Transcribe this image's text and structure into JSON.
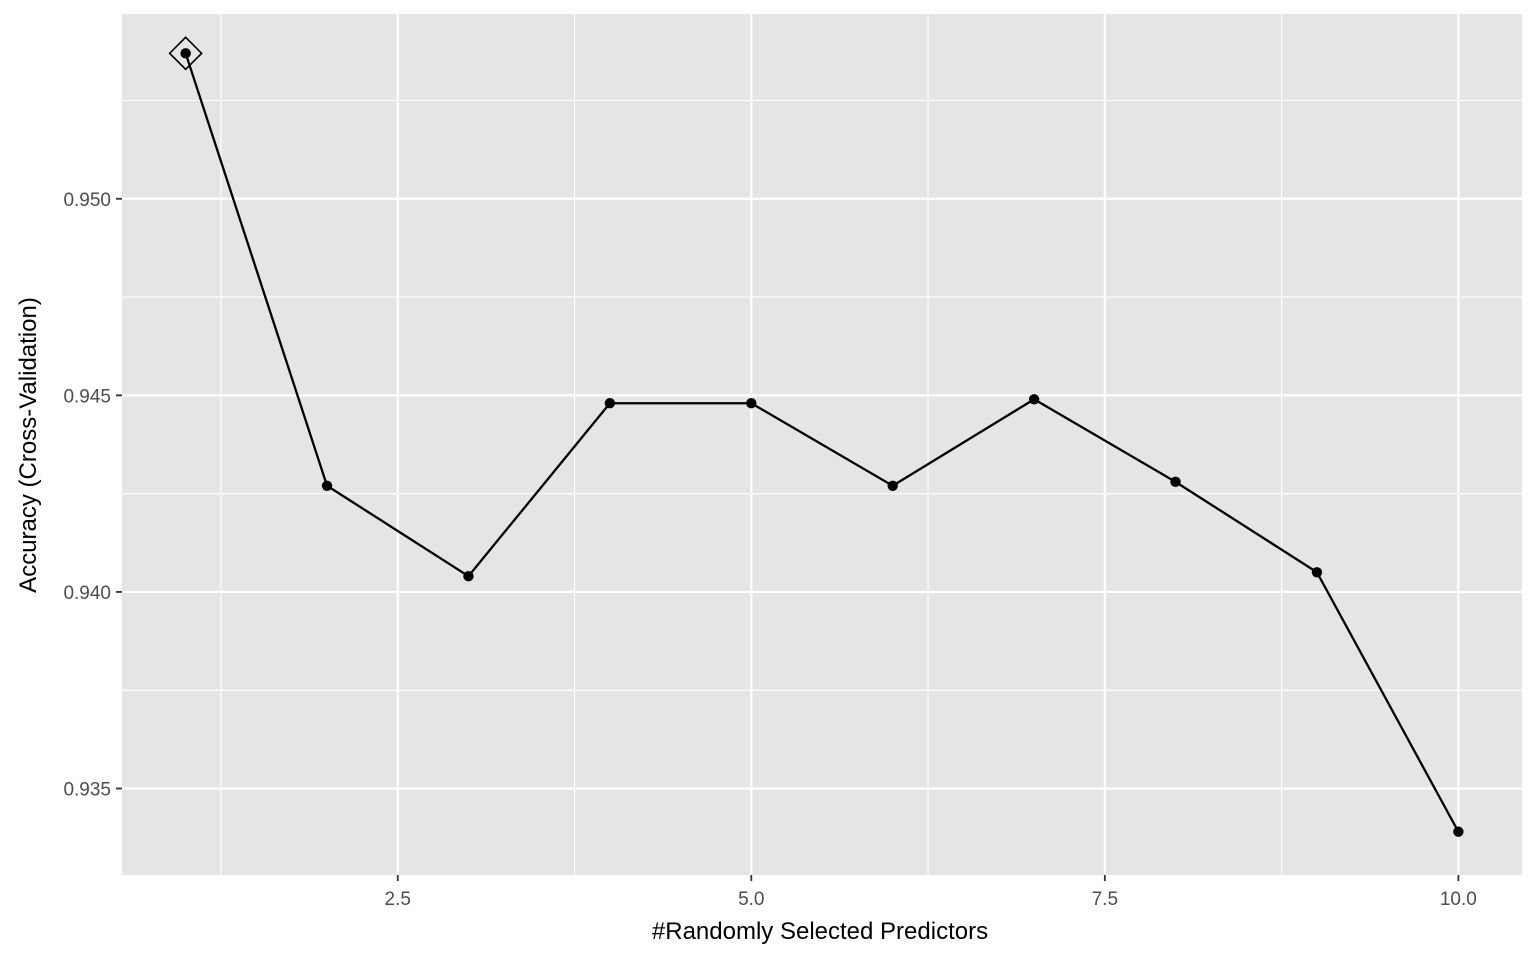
{
  "chart_data": {
    "type": "line",
    "title": "",
    "xlabel": "#Randomly Selected Predictors",
    "ylabel": "Accuracy (Cross-Validation)",
    "xlim": [
      0.55,
      10.45
    ],
    "ylim": [
      0.9328,
      0.9547
    ],
    "x_ticks": [
      2.5,
      5.0,
      7.5,
      10.0
    ],
    "x_tick_labels": [
      "2.5",
      "5.0",
      "7.5",
      "10.0"
    ],
    "y_ticks": [
      0.935,
      0.94,
      0.945,
      0.95
    ],
    "y_tick_labels": [
      "0.935",
      "0.940",
      "0.945",
      "0.950"
    ],
    "grid": true,
    "x": [
      1,
      2,
      3,
      4,
      5,
      6,
      7,
      8,
      9,
      10
    ],
    "series": [
      {
        "values": [
          0.9537,
          0.9427,
          0.9404,
          0.9448,
          0.9448,
          0.9427,
          0.9449,
          0.9428,
          0.9405,
          0.9339
        ]
      }
    ],
    "best_marker": {
      "x": 1,
      "y": 0.9537,
      "shape": "diamond"
    },
    "colors": {
      "panel": "#e5e5e5",
      "grid": "#ffffff",
      "line": "#000000",
      "tick_text": "#4d4d4d"
    }
  }
}
